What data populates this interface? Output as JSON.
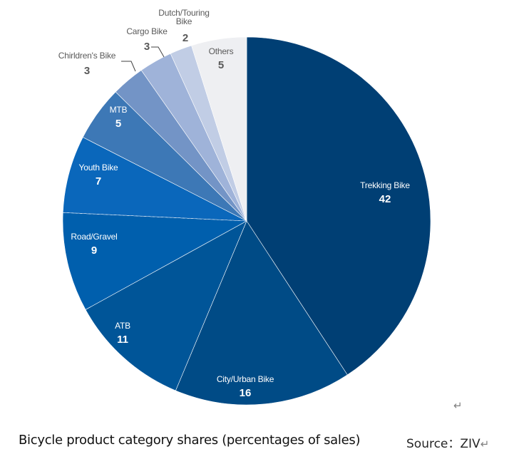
{
  "chart_data": {
    "type": "pie",
    "title": "",
    "slices": [
      {
        "label": "Trekking Bike",
        "value": 42,
        "color": "#003f74"
      },
      {
        "label": "City/Urban Bike",
        "value": 16,
        "color": "#004b86"
      },
      {
        "label": "ATB",
        "value": 11,
        "color": "#005598"
      },
      {
        "label": "Road/Gravel",
        "value": 9,
        "color": "#005fad"
      },
      {
        "label": "Youth Bike",
        "value": 7,
        "color": "#0a67bb"
      },
      {
        "label": "MTB",
        "value": 5,
        "color": "#3d78b6"
      },
      {
        "label": "Chirldren's Bike",
        "value": 3,
        "color": "#7394c6"
      },
      {
        "label": "Cargo Bike",
        "value": 3,
        "color": "#9fb3d9"
      },
      {
        "label": "Dutch/Touring Bike",
        "value": 2,
        "color": "#c1cde5"
      },
      {
        "label": "Others",
        "value": 5,
        "color": "#eeeff2"
      }
    ]
  },
  "caption": "Bicycle product category shares (percentages of sales)",
  "source": "Source：ZIV",
  "paragraph_mark": "↵"
}
